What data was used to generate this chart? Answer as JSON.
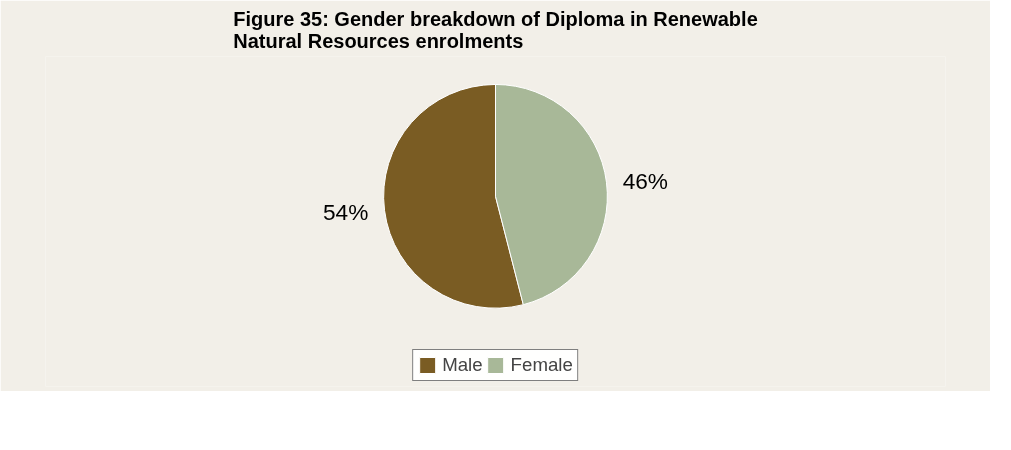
{
  "chart_data": {
    "type": "pie",
    "title": "Figure 35: Gender breakdown of Diploma in Renewable\nNatural Resources enrolments",
    "categories": [
      "Male",
      "Female"
    ],
    "values": [
      54,
      46
    ],
    "colors": [
      "#7a5c23",
      "#a8b898"
    ],
    "value_labels": [
      "54%",
      "46%"
    ],
    "legend": "bottom"
  }
}
